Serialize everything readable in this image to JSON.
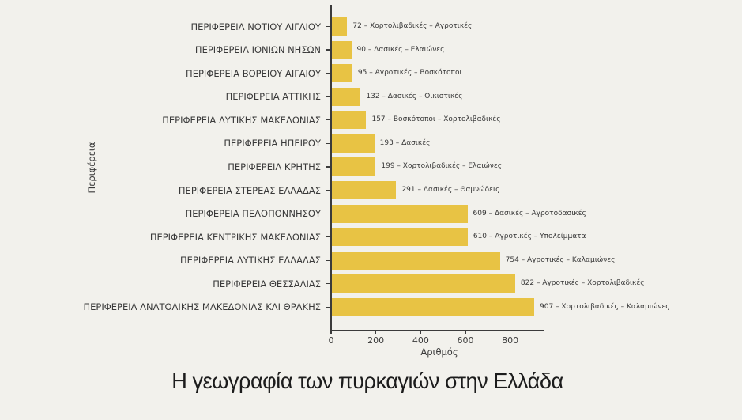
{
  "page": {
    "background_color": "#f2f1ec"
  },
  "chart_data": {
    "type": "bar",
    "orientation": "horizontal",
    "title": "Η γεωγραφία των πυρκαγιών στην Ελλάδα",
    "xlabel": "Αριθμός",
    "ylabel": "Περιφέρεια",
    "xlim": [
      0,
      946
    ],
    "xticks": [
      0,
      200,
      400,
      600,
      800
    ],
    "grid": false,
    "legend": null,
    "bar_color": "#e8c344",
    "axis_color": "#3b3b3b",
    "text_color": "#3a3a3a",
    "categories": [
      "ΠΕΡΙΦΕΡΕΙΑ ΝΟΤΙΟΥ ΑΙΓΑΙΟΥ",
      "ΠΕΡΙΦΕΡΕΙΑ ΙΟΝΙΩΝ ΝΗΣΩΝ",
      "ΠΕΡΙΦΕΡΕΙΑ ΒΟΡΕΙΟΥ ΑΙΓΑΙΟΥ",
      "ΠΕΡΙΦΕΡΕΙΑ ΑΤΤΙΚΗΣ",
      "ΠΕΡΙΦΕΡΕΙΑ ΔΥΤΙΚΗΣ ΜΑΚΕΔΟΝΙΑΣ",
      "ΠΕΡΙΦΕΡΕΙΑ ΗΠΕΙΡΟΥ",
      "ΠΕΡΙΦΕΡΕΙΑ ΚΡΗΤΗΣ",
      "ΠΕΡΙΦΕΡΕΙΑ ΣΤΕΡΕΑΣ ΕΛΛΑΔΑΣ",
      "ΠΕΡΙΦΕΡΕΙΑ ΠΕΛΟΠΟΝΝΗΣΟΥ",
      "ΠΕΡΙΦΕΡΕΙΑ ΚΕΝΤΡΙΚΗΣ ΜΑΚΕΔΟΝΙΑΣ",
      "ΠΕΡΙΦΕΡΕΙΑ ΔΥΤΙΚΗΣ ΕΛΛΑΔΑΣ",
      "ΠΕΡΙΦΕΡΕΙΑ ΘΕΣΣΑΛΙΑΣ",
      "ΠΕΡΙΦΕΡΕΙΑ ΑΝΑΤΟΛΙΚΗΣ ΜΑΚΕΔΟΝΙΑΣ ΚΑΙ ΘΡΑΚΗΣ"
    ],
    "values": [
      72,
      90,
      95,
      132,
      157,
      193,
      199,
      291,
      609,
      610,
      754,
      822,
      907
    ],
    "annotations": [
      "72 – Χορτολιβαδικές – Αγροτικές",
      "90 – Δασικές – Ελαιώνες",
      "95 – Αγροτικές – Βοσκότοποι",
      "132 – Δασικές – Οικιστικές",
      "157 – Βοσκότοποι – Χορτολιβαδικές",
      "193 – Δασικές",
      "199 – Χορτολιβαδικές – Ελαιώνες",
      "291 – Δασικές – Θαμνώδεις",
      "609 – Δασικές – Αγροτοδασικές",
      "610 – Αγροτικές – Υπολείμματα",
      "754 – Αγροτικές – Καλαμιώνες",
      "822 – Αγροτικές – Χορτολιβαδικές",
      "907 – Χορτολιβαδικές – Καλαμιώνες"
    ]
  }
}
